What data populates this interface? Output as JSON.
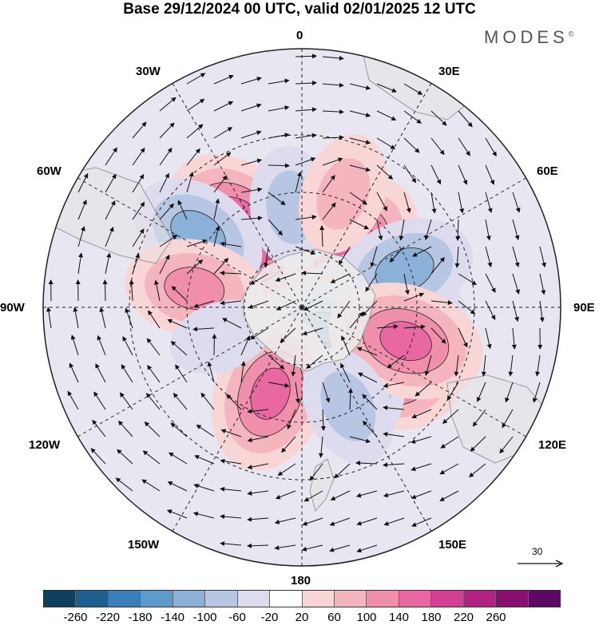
{
  "title": "Base 29/12/2024 00 UTC, valid 02/01/2025 12 UTC",
  "brand": "MODES",
  "brand_mark": "©",
  "longitude_labels": {
    "top": "0",
    "bottom": "180",
    "left": "90W",
    "right": "90E",
    "nw30": "30W",
    "ne30": "30E",
    "w60": "60W",
    "e60": "60E",
    "w120": "120W",
    "e120": "120E",
    "w150": "150W",
    "e150": "150E"
  },
  "vector_reference": "30",
  "colorbar": {
    "colors": [
      "#0d3f5e",
      "#1f5f8f",
      "#3b7fba",
      "#5d9bcc",
      "#8cb1d8",
      "#b7c6e2",
      "#dcdcee",
      "#ffffff",
      "#f9d6d6",
      "#f5b5be",
      "#ef8fac",
      "#e868a2",
      "#d23f93",
      "#b12282",
      "#8a106f",
      "#5e0865"
    ],
    "labels": [
      "-260",
      "-220",
      "-180",
      "-140",
      "-100",
      "-60",
      "-20",
      "20",
      "60",
      "100",
      "140",
      "180",
      "220",
      "260"
    ]
  },
  "anomaly_centers": [
    {
      "lon": -40,
      "colat": 34,
      "value": 200
    },
    {
      "lon": -55,
      "colat": 44,
      "value": -120
    },
    {
      "lon": 40,
      "colat": 27,
      "value": 160
    },
    {
      "lon": 95,
      "colat": 27,
      "value": -180
    },
    {
      "lon": 122,
      "colat": 29,
      "value": 240
    },
    {
      "lon": 150,
      "colat": 23,
      "value": -180
    },
    {
      "lon": -160,
      "colat": 32,
      "value": 140
    },
    {
      "lon": -6,
      "colat": 35,
      "value": -80
    },
    {
      "lon": 70,
      "colat": 38,
      "value": -100
    },
    {
      "lon": 108,
      "colat": 38,
      "value": 140
    },
    {
      "lon": -80,
      "colat": 38,
      "value": 100
    },
    {
      "lon": 20,
      "colat": 42,
      "value": 60
    },
    {
      "lon": 155,
      "colat": 38,
      "value": -80
    },
    {
      "lon": -110,
      "colat": 30,
      "value": -40
    }
  ]
}
